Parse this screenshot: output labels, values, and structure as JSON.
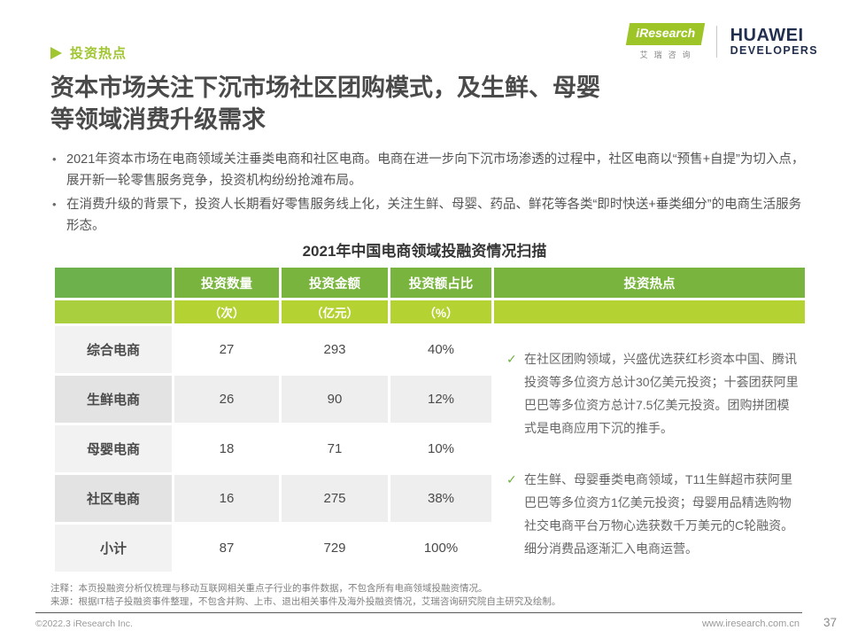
{
  "icons": {
    "bullet": "•",
    "check": "✓"
  },
  "header": {
    "section_label": "投资热点",
    "title_line1": "资本市场关注下沉市场社区团购模式，及生鲜、母婴",
    "title_line2": "等领域消费升级需求"
  },
  "logos": {
    "iresearch_en": "iResearch",
    "iresearch_cn": "艾瑞咨询",
    "huawei_line1": "HUAWEI",
    "huawei_line2": "DEVELOPERS"
  },
  "intro_bullets": [
    "2021年资本市场在电商领域关注垂类电商和社区电商。电商在进一步向下沉市场渗透的过程中，社区电商以“预售+自提”为切入点，展开新一轮零售服务竞争，投资机构纷纷抢滩布局。",
    "在消费升级的背景下，投资人长期看好零售服务线上化，关注生鲜、母婴、药品、鲜花等各类“即时快送+垂类细分”的电商生活服务形态。"
  ],
  "chart_data": {
    "type": "table",
    "title": "2021年中国电商领域投融资情况扫描",
    "columns": [
      "",
      "投资数量",
      "投资金额",
      "投资额占比",
      "投资热点"
    ],
    "units": [
      "",
      "（次）",
      "（亿元）",
      "（%）",
      ""
    ],
    "rows": [
      {
        "label": "综合电商",
        "count": "27",
        "amount": "293",
        "share": "40%"
      },
      {
        "label": "生鲜电商",
        "count": "26",
        "amount": "90",
        "share": "12%"
      },
      {
        "label": "母婴电商",
        "count": "18",
        "amount": "71",
        "share": "10%"
      },
      {
        "label": "社区电商",
        "count": "16",
        "amount": "275",
        "share": "38%"
      },
      {
        "label": "小计",
        "count": "87",
        "amount": "729",
        "share": "100%"
      }
    ],
    "hotspots": [
      "在社区团购领域，兴盛优选获红杉资本中国、腾讯投资等多位资方总计30亿美元投资；十荟团获阿里巴巴等多位资方总计7.5亿美元投资。团购拼团模式是电商应用下沉的推手。",
      "在生鲜、母婴垂类电商领域，T11生鲜超市获阿里巴巴等多位资方1亿美元投资；母婴用品精选购物社交电商平台万物心选获数千万美元的C轮融资。细分消费品逐渐汇入电商运营。"
    ],
    "colors": {
      "header_green": "#79b53e",
      "subheader_green": "#b5d233",
      "accent_green": "#a0c632",
      "check_green": "#6db33f"
    }
  },
  "notes": {
    "line1": "注释：本页投融资分析仅梳理与移动互联网相关重点子行业的事件数据，不包含所有电商领域投融资情况。",
    "line2": "来源：根据IT桔子投融资事件整理，不包含并购、上市、退出相关事件及海外投融资情况，艾瑞咨询研究院自主研究及绘制。"
  },
  "footer": {
    "copyright": "©2022.3 iResearch Inc.",
    "url": "www.iresearch.com.cn",
    "page_number": "37"
  }
}
